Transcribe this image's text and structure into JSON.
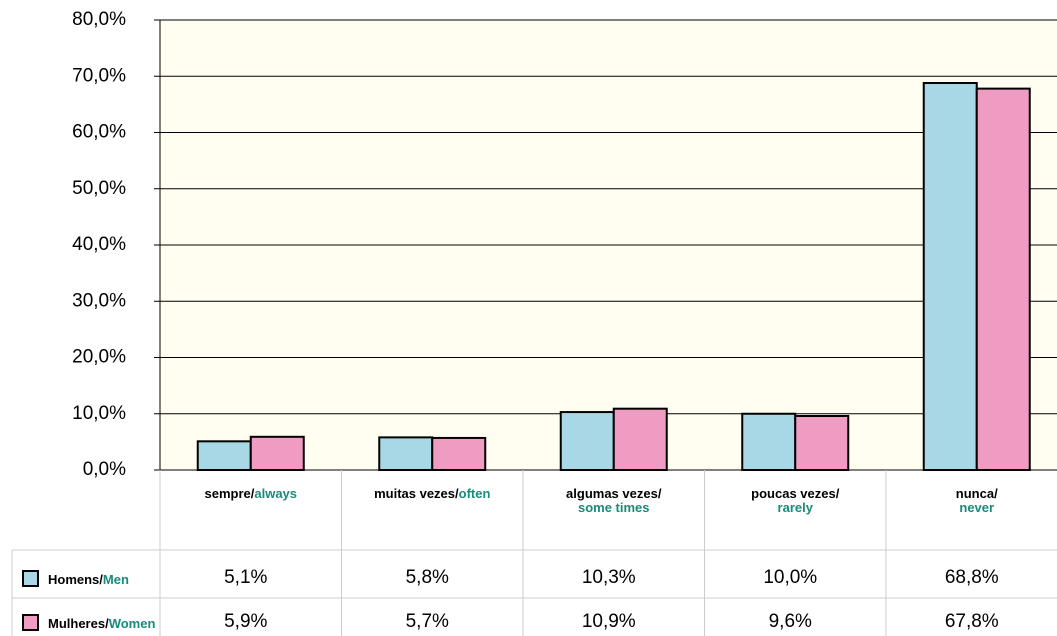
{
  "chart_data": {
    "type": "bar",
    "categories": [
      {
        "pt": "sempre/",
        "en": "always"
      },
      {
        "pt": "muitas vezes/",
        "en": "often"
      },
      {
        "pt": "algumas vezes/",
        "en": "some times"
      },
      {
        "pt": "poucas vezes/",
        "en": "rarely"
      },
      {
        "pt": "nunca/",
        "en": "never"
      }
    ],
    "series": [
      {
        "name": {
          "pt": "Homens/",
          "en": "Men"
        },
        "color": "#a8d8e6",
        "values": [
          5.1,
          5.8,
          10.3,
          10.0,
          68.8
        ],
        "value_labels": [
          "5,1%",
          "5,8%",
          "10,3%",
          "10,0%",
          "68,8%"
        ]
      },
      {
        "name": {
          "pt": "Mulheres/",
          "en": "Women"
        },
        "color": "#f09cc2",
        "values": [
          5.9,
          5.7,
          10.9,
          9.6,
          67.8
        ],
        "value_labels": [
          "5,9%",
          "5,7%",
          "10,9%",
          "9,6%",
          "67,8%"
        ]
      }
    ],
    "ylim": [
      0,
      80
    ],
    "yticks": [
      {
        "value": 0,
        "label": "0,0%"
      },
      {
        "value": 10,
        "label": "10,0%"
      },
      {
        "value": 20,
        "label": "20,0%"
      },
      {
        "value": 30,
        "label": "30,0%"
      },
      {
        "value": 40,
        "label": "40,0%"
      },
      {
        "value": 50,
        "label": "50,0%"
      },
      {
        "value": 60,
        "label": "60,0%"
      },
      {
        "value": 70,
        "label": "70,0%"
      },
      {
        "value": 80,
        "label": "80,0%"
      }
    ],
    "grid": true
  }
}
